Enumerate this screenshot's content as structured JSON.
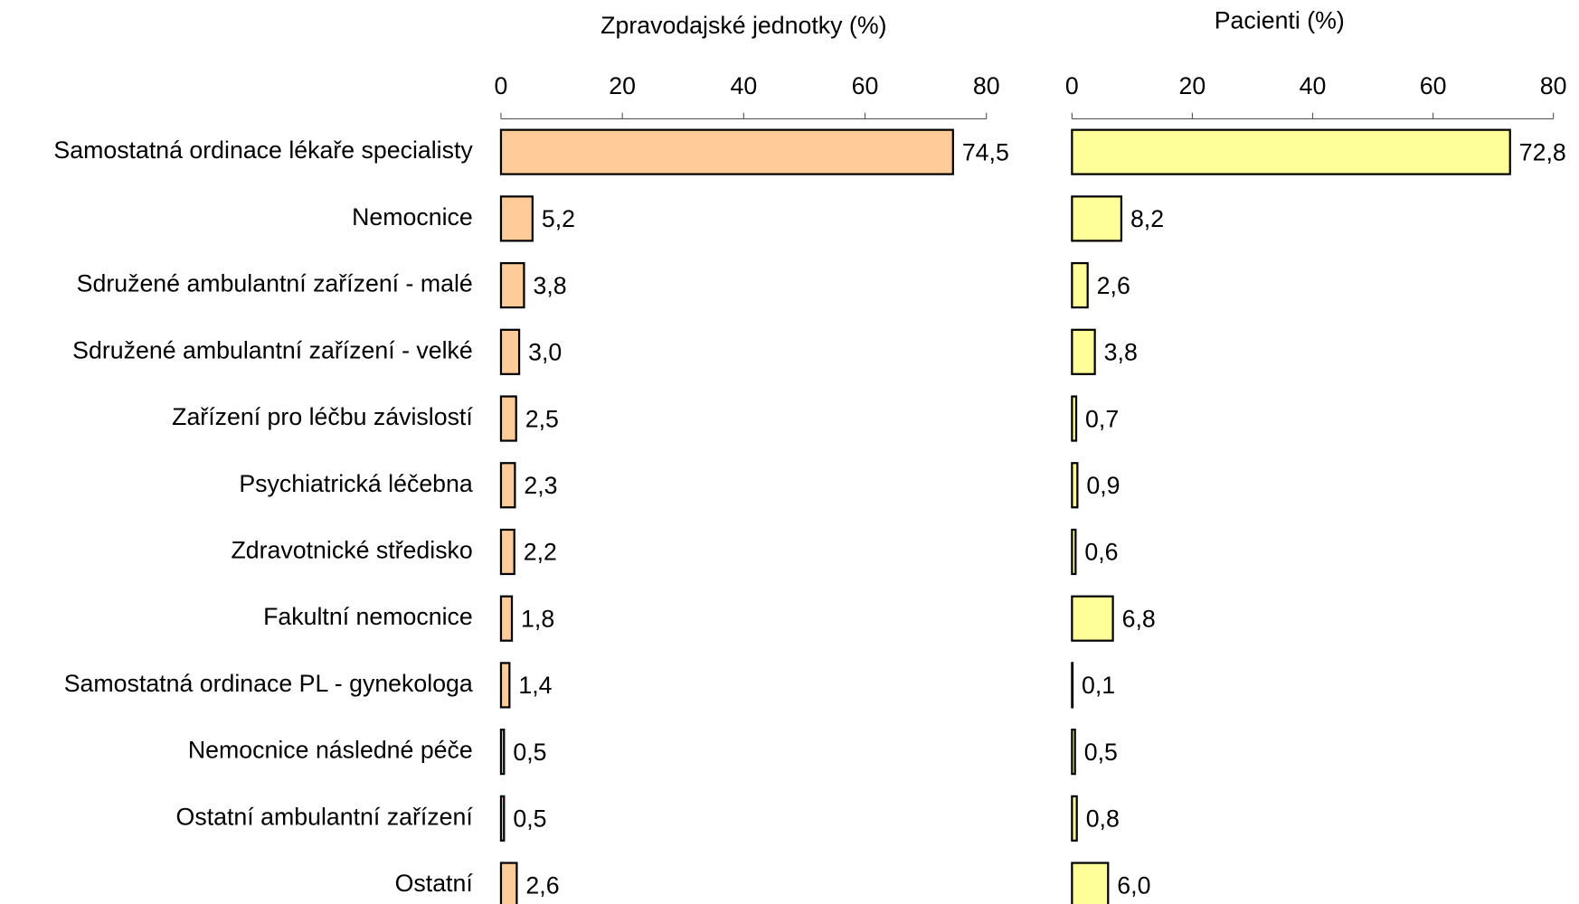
{
  "chart_data": [
    {
      "type": "bar",
      "orientation": "horizontal",
      "title": "Zpravodajské jednotky (%)",
      "categories": [
        "Samostatná ordinace lékaře specialisty",
        "Nemocnice",
        "Sdružené ambulantní zařízení - malé",
        "Sdružené ambulantní zařízení - velké",
        "Zařízení pro léčbu závislostí",
        "Psychiatrická léčebna",
        "Zdravotnické středisko",
        "Fakultní nemocnice",
        "Samostatná ordinace PL - gynekologa",
        "Nemocnice následné péče",
        "Ostatní ambulantní zařízení",
        "Ostatní"
      ],
      "values": [
        74.5,
        5.2,
        3.8,
        3.0,
        2.5,
        2.3,
        2.2,
        1.8,
        1.4,
        0.5,
        0.5,
        2.6
      ],
      "value_labels": [
        "74,5",
        "5,2",
        "3,8",
        "3,0",
        "2,5",
        "2,3",
        "2,2",
        "1,8",
        "1,4",
        "0,5",
        "0,5",
        "2,6"
      ],
      "color": "#ffcc99",
      "xlim": [
        0,
        80
      ],
      "xticks": [
        0,
        20,
        40,
        60,
        80
      ]
    },
    {
      "type": "bar",
      "orientation": "horizontal",
      "title": "Pacienti (%)",
      "values": [
        72.8,
        8.2,
        2.6,
        3.8,
        0.7,
        0.9,
        0.6,
        6.8,
        0.1,
        0.5,
        0.8,
        6.0
      ],
      "value_labels": [
        "72,8",
        "8,2",
        "2,6",
        "3,8",
        "0,7",
        "0,9",
        "0,6",
        "6,8",
        "0,1",
        "0,5",
        "0,8",
        "6,0"
      ],
      "color": "#ffff99",
      "xlim": [
        0,
        80
      ],
      "xticks": [
        0,
        20,
        40,
        60,
        80
      ]
    }
  ]
}
